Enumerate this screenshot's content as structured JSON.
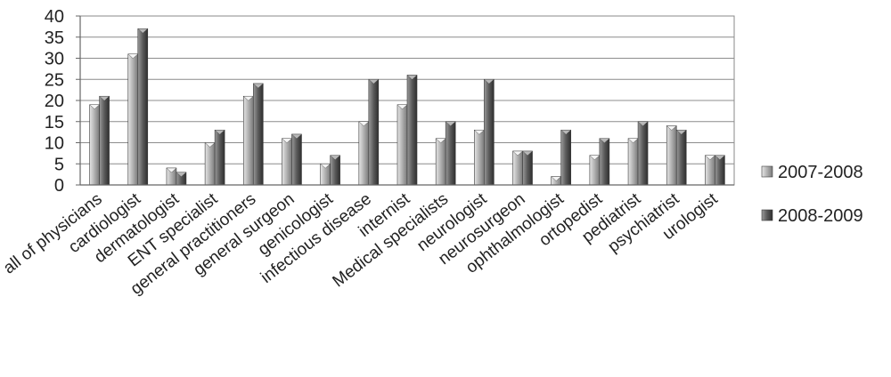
{
  "chart_data": {
    "type": "bar",
    "categories": [
      "all of physicians",
      "cardiologist",
      "dermatologist",
      "ENT specialist",
      "general practitioners",
      "general surgeon",
      "genicologist",
      "infectious disease",
      "internist",
      "Medical specialists",
      "neurologist",
      "neurosurgeon",
      "ophthalmologist",
      "ortopedist",
      "pediatrist",
      "psychiatrist",
      "urologist"
    ],
    "series": [
      {
        "name": "2007-2008",
        "color": "#a9a9a9",
        "values": [
          19,
          31,
          4,
          10,
          21,
          11,
          5,
          15,
          19,
          11,
          13,
          8,
          2,
          7,
          11,
          14,
          7
        ]
      },
      {
        "name": "2008-2009",
        "color": "#5f5f5f",
        "values": [
          21,
          37,
          3,
          13,
          24,
          12,
          7,
          25,
          26,
          15,
          25,
          8,
          13,
          11,
          15,
          13,
          7
        ]
      }
    ],
    "ylim": [
      0,
      40
    ],
    "yticks": [
      0,
      5,
      10,
      15,
      20,
      25,
      30,
      35,
      40
    ],
    "grid": true,
    "legend_position": "right",
    "title": "",
    "xlabel": "",
    "ylabel": ""
  }
}
